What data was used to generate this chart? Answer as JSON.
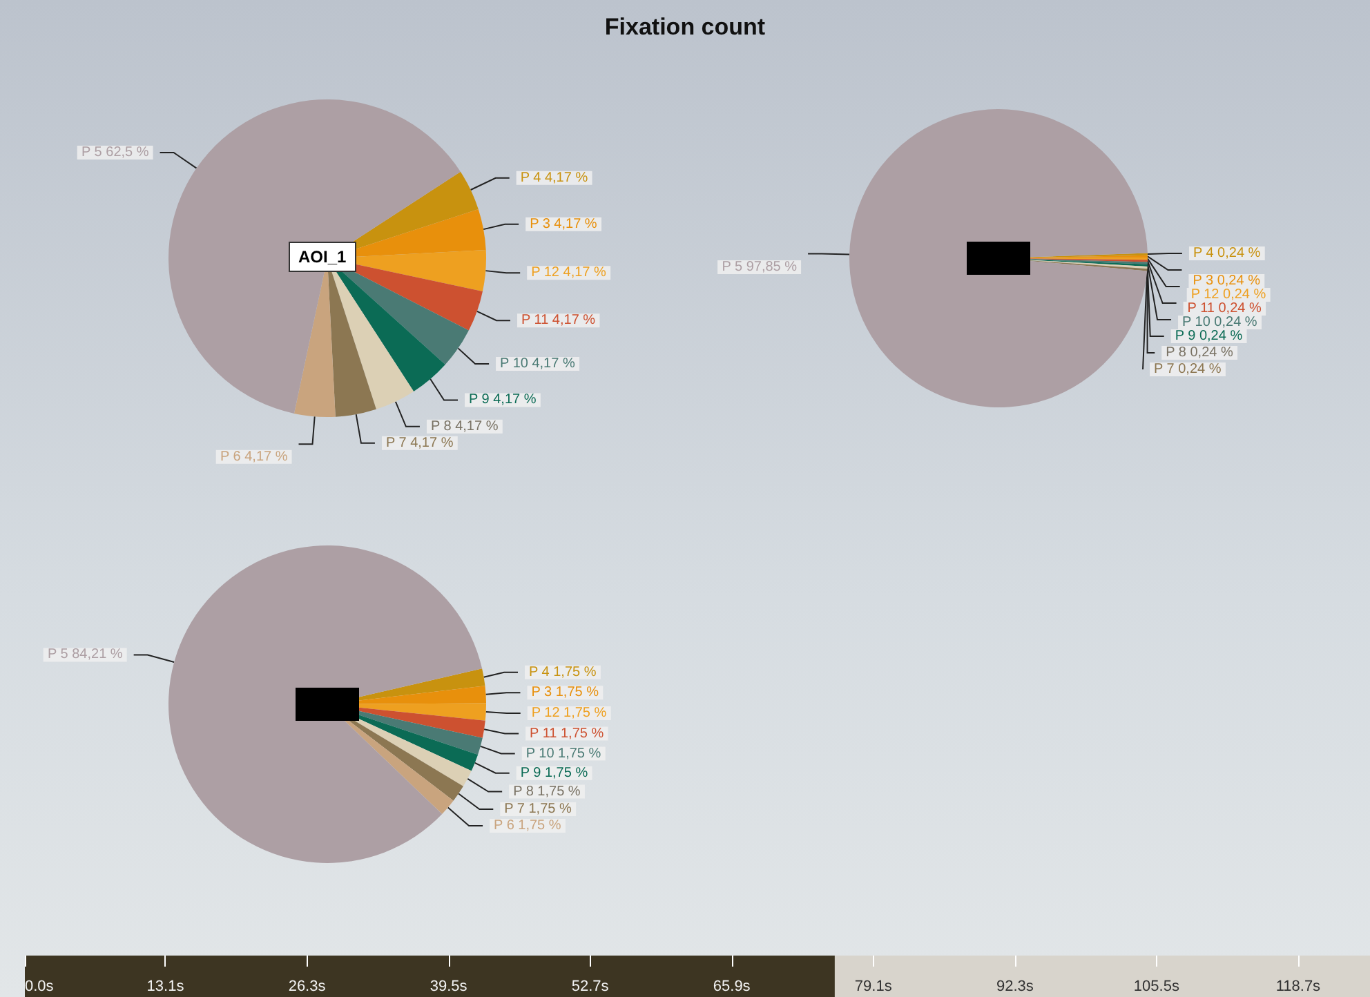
{
  "chart_data": [
    {
      "type": "pie",
      "title": "Fixation count",
      "annotations": [
        "AOI_1"
      ],
      "categories": [
        "P 4",
        "P 3",
        "P 12",
        "P 11",
        "P 10",
        "P 9",
        "P 8",
        "P 7",
        "P 6",
        "P 5"
      ],
      "values": [
        4.17,
        4.17,
        4.17,
        4.17,
        4.17,
        4.17,
        4.17,
        4.17,
        4.17,
        62.5
      ],
      "value_labels": [
        "4,17 %",
        "4,17 %",
        "4,17 %",
        "4,17 %",
        "4,17 %",
        "4,17 %",
        "4,17 %",
        "4,17 %",
        "4,17 %",
        "62,5 %"
      ],
      "colors": [
        "#c8920f",
        "#e8900c",
        "#eea020",
        "#cd5130",
        "#4a7a74",
        "#0b6b55",
        "#dcd0b5",
        "#8c7752",
        "#c9a47e",
        "#ad9fa4"
      ]
    },
    {
      "type": "pie",
      "categories": [
        "P 4",
        "P 3",
        "P 12",
        "P 11",
        "P 10",
        "P 9",
        "P 8",
        "P 7",
        "P 5"
      ],
      "values": [
        0.24,
        0.24,
        0.24,
        0.24,
        0.24,
        0.24,
        0.24,
        0.24,
        97.85
      ],
      "value_labels": [
        "0,24 %",
        "0,24 %",
        "0,24 %",
        "0,24 %",
        "0,24 %",
        "0,24 %",
        "0,24 %",
        "0,24 %",
        "97,85 %"
      ],
      "colors": [
        "#c8920f",
        "#e8900c",
        "#eea020",
        "#cd5130",
        "#4a7a74",
        "#0b6b55",
        "#dcd0b5",
        "#8c7752",
        "#ad9fa4"
      ]
    },
    {
      "type": "pie",
      "categories": [
        "P 4",
        "P 3",
        "P 12",
        "P 11",
        "P 10",
        "P 9",
        "P 8",
        "P 7",
        "P 6",
        "P 5"
      ],
      "values": [
        1.75,
        1.75,
        1.75,
        1.75,
        1.75,
        1.75,
        1.75,
        1.75,
        1.75,
        84.21
      ],
      "value_labels": [
        "1,75 %",
        "1,75 %",
        "1,75 %",
        "1,75 %",
        "1,75 %",
        "1,75 %",
        "1,75 %",
        "1,75 %",
        "1,75 %",
        "84,21 %"
      ],
      "colors": [
        "#c8920f",
        "#e8900c",
        "#eea020",
        "#cd5130",
        "#4a7a74",
        "#0b6b55",
        "#dcd0b5",
        "#8c7752",
        "#c9a47e",
        "#ad9fa4"
      ]
    },
    {
      "type": "bar",
      "orientation": "horizontal",
      "tick_labels": "x",
      "categories": [
        null
      ],
      "values": [
        75.5
      ],
      "color": "#3d3522",
      "xlim": [
        0,
        125.4
      ],
      "xticks": [
        {
          "value": 0,
          "label": "0.0s"
        },
        {
          "value": 13.1,
          "label": "13.1s"
        },
        {
          "value": 26.3,
          "label": "26.3s"
        },
        {
          "value": 39.5,
          "label": "39.5s"
        },
        {
          "value": 52.7,
          "label": "52.7s"
        },
        {
          "value": 65.9,
          "label": "65.9s"
        },
        {
          "value": 79.1,
          "label": "79.1s"
        },
        {
          "value": 92.3,
          "label": "92.3s"
        },
        {
          "value": 105.5,
          "label": "105.5s"
        },
        {
          "value": 118.7,
          "label": "118.7s"
        }
      ],
      "grid": false
    }
  ]
}
